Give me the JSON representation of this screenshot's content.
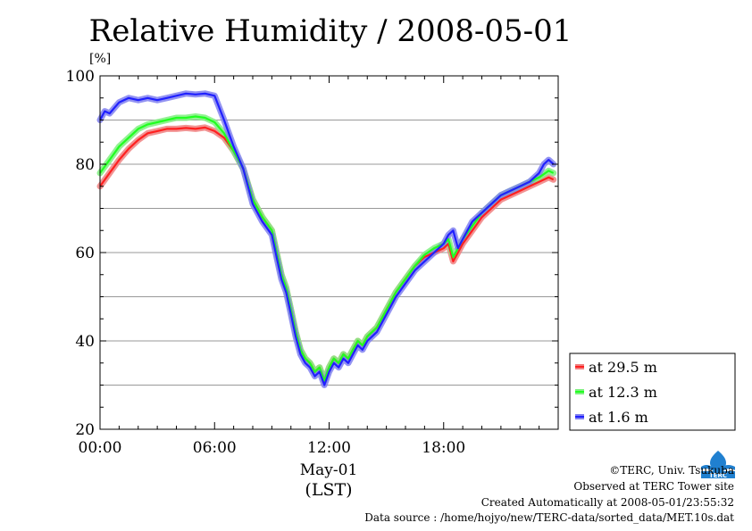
{
  "chart_data": {
    "type": "line",
    "title": "Relative Humidity / 2008-05-01",
    "yunit": "[%]",
    "xlabel_date": "May-01",
    "xlabel_tz": "(LST)",
    "ylim": [
      20,
      100
    ],
    "xlim": [
      0,
      24
    ],
    "yticks": [
      20,
      40,
      60,
      80,
      100
    ],
    "xticks": [
      {
        "x": 0,
        "label": "00:00"
      },
      {
        "x": 6,
        "label": "06:00"
      },
      {
        "x": 12,
        "label": "12:00"
      },
      {
        "x": 18,
        "label": "18:00"
      }
    ],
    "grid": true,
    "legend_position": "bottom-right-outside",
    "series": [
      {
        "name": "at 29.5 m",
        "color": "#ff2020",
        "band": "#f08080",
        "x": [
          0,
          0.5,
          1,
          1.5,
          2,
          2.5,
          3,
          3.5,
          4,
          4.5,
          5,
          5.5,
          6,
          6.5,
          7,
          7.5,
          8,
          8.5,
          9,
          9.25,
          9.5,
          9.75,
          10,
          10.25,
          10.5,
          10.75,
          11,
          11.25,
          11.5,
          11.75,
          12,
          12.25,
          12.5,
          12.75,
          13,
          13.25,
          13.5,
          13.75,
          14,
          14.5,
          15,
          15.5,
          16,
          16.5,
          17,
          17.5,
          18,
          18.25,
          18.5,
          18.75,
          19,
          19.5,
          20,
          20.5,
          21,
          21.5,
          22,
          22.5,
          23,
          23.5,
          23.75
        ],
        "y": [
          75,
          78,
          81,
          83.5,
          85.5,
          87,
          87.5,
          88,
          88,
          88.2,
          88,
          88.3,
          87.5,
          86,
          83,
          79,
          72,
          68,
          65,
          60,
          55,
          52,
          47,
          42,
          38,
          36,
          35,
          33,
          34,
          31,
          34,
          36,
          35,
          37,
          36,
          38,
          40,
          39,
          41,
          43,
          47,
          51,
          54,
          57,
          59,
          60,
          61,
          62,
          58,
          60,
          62,
          65,
          68,
          70,
          72,
          73,
          74,
          75,
          76,
          77,
          76.5
        ]
      },
      {
        "name": "at 12.3 m",
        "color": "#20ff20",
        "band": "#80f080",
        "x": [
          0,
          0.5,
          1,
          1.5,
          2,
          2.5,
          3,
          3.5,
          4,
          4.5,
          5,
          5.5,
          6,
          6.5,
          7,
          7.5,
          8,
          8.5,
          9,
          9.25,
          9.5,
          9.75,
          10,
          10.25,
          10.5,
          10.75,
          11,
          11.25,
          11.5,
          11.75,
          12,
          12.25,
          12.5,
          12.75,
          13,
          13.25,
          13.5,
          13.75,
          14,
          14.5,
          15,
          15.5,
          16,
          16.5,
          17,
          17.5,
          18,
          18.25,
          18.5,
          18.75,
          19,
          19.5,
          20,
          20.5,
          21,
          21.5,
          22,
          22.5,
          23,
          23.5,
          23.75
        ],
        "y": [
          78,
          81,
          84,
          86,
          88,
          89,
          89.5,
          90,
          90.5,
          90.5,
          90.8,
          90.5,
          89.5,
          87,
          83,
          79,
          72,
          68,
          65,
          60,
          55,
          52,
          47,
          42,
          38,
          36,
          35,
          33,
          34,
          31,
          34,
          36,
          35,
          37,
          36,
          38,
          40,
          39,
          41,
          43,
          47,
          51,
          54,
          57,
          59.5,
          61,
          62,
          63,
          59,
          61,
          63,
          66,
          69,
          71,
          73,
          74,
          75,
          76,
          77,
          78.5,
          78
        ]
      },
      {
        "name": "at 1.6 m",
        "color": "#2020ff",
        "band": "#8080f0",
        "x": [
          0,
          0.25,
          0.5,
          1,
          1.5,
          2,
          2.5,
          3,
          3.5,
          4,
          4.5,
          5,
          5.5,
          6,
          6.5,
          7,
          7.5,
          8,
          8.5,
          9,
          9.25,
          9.5,
          9.75,
          10,
          10.25,
          10.5,
          10.75,
          11,
          11.25,
          11.5,
          11.75,
          12,
          12.25,
          12.5,
          12.75,
          13,
          13.25,
          13.5,
          13.75,
          14,
          14.5,
          15,
          15.5,
          16,
          16.5,
          17,
          17.5,
          18,
          18.25,
          18.5,
          18.75,
          19,
          19.5,
          20,
          20.5,
          21,
          21.5,
          22,
          22.5,
          23,
          23.25,
          23.5,
          23.75
        ],
        "y": [
          90,
          92,
          91.5,
          94,
          95,
          94.5,
          95,
          94.5,
          95,
          95.5,
          96,
          95.8,
          96,
          95.5,
          90,
          84,
          79,
          71,
          67,
          64,
          59,
          54,
          51,
          46,
          41,
          37,
          35,
          34,
          32,
          33,
          30,
          33,
          35,
          34,
          36,
          35,
          37,
          39,
          38,
          40,
          42,
          46,
          50,
          53,
          56,
          58,
          60,
          62,
          64,
          65,
          61,
          63,
          67,
          69,
          71,
          73,
          74,
          75,
          76,
          78,
          80,
          81,
          80
        ]
      }
    ]
  },
  "credits": {
    "copyright": "©TERC, Univ. Tsukuba",
    "observed": "Observed at TERC Tower site",
    "created": "Created Automatically at 2008-05-01/23:55:32",
    "source": "Data source : /home/hojyo/new/TERC-data/sorted_data/MET.10s.dat"
  },
  "logo": {
    "name": "terc-logo",
    "text": "TERC",
    "color": "#2080d0"
  }
}
